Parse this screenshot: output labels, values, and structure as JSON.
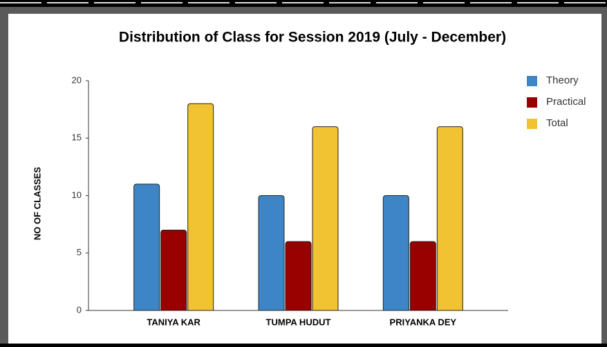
{
  "chart_data": {
    "type": "bar",
    "title": "Distribution of Class for Session 2019 (July - December)",
    "ylabel": "NO OF CLASSES",
    "categories": [
      "TANIYA KAR",
      "TUMPA HUDUT",
      "PRIYANKA DEY"
    ],
    "series": [
      {
        "name": "Theory",
        "color": "#3d85c6",
        "values": [
          11,
          10,
          10
        ]
      },
      {
        "name": "Practical",
        "color": "#990000",
        "values": [
          7,
          6,
          6
        ]
      },
      {
        "name": "Total",
        "color": "#f1c232",
        "values": [
          18,
          16,
          16
        ]
      }
    ],
    "ylim": [
      0,
      20
    ],
    "yticks": [
      0,
      5,
      10,
      15,
      20
    ],
    "grid": false,
    "legend": "right"
  }
}
